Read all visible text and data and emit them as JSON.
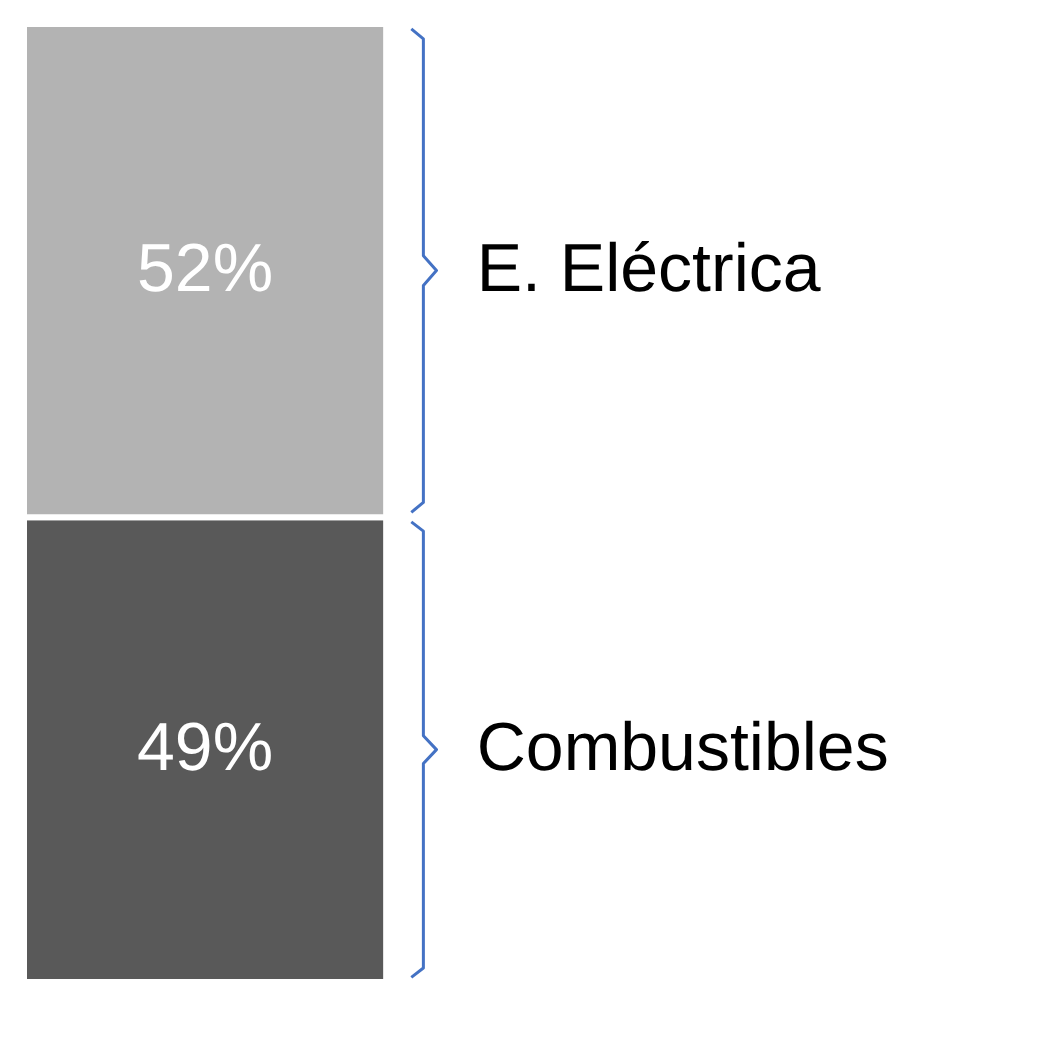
{
  "chart_data": {
    "type": "bar",
    "stacked": true,
    "categories": [
      null
    ],
    "legend": false,
    "series": [
      {
        "name": "Combustibles",
        "color": "#595959",
        "values": [
          49
        ],
        "value_labels": [
          "49%"
        ]
      },
      {
        "name": "E. Eléctrica",
        "color": "#b3b3b3",
        "values": [
          52
        ],
        "value_labels": [
          "52%"
        ]
      }
    ]
  }
}
